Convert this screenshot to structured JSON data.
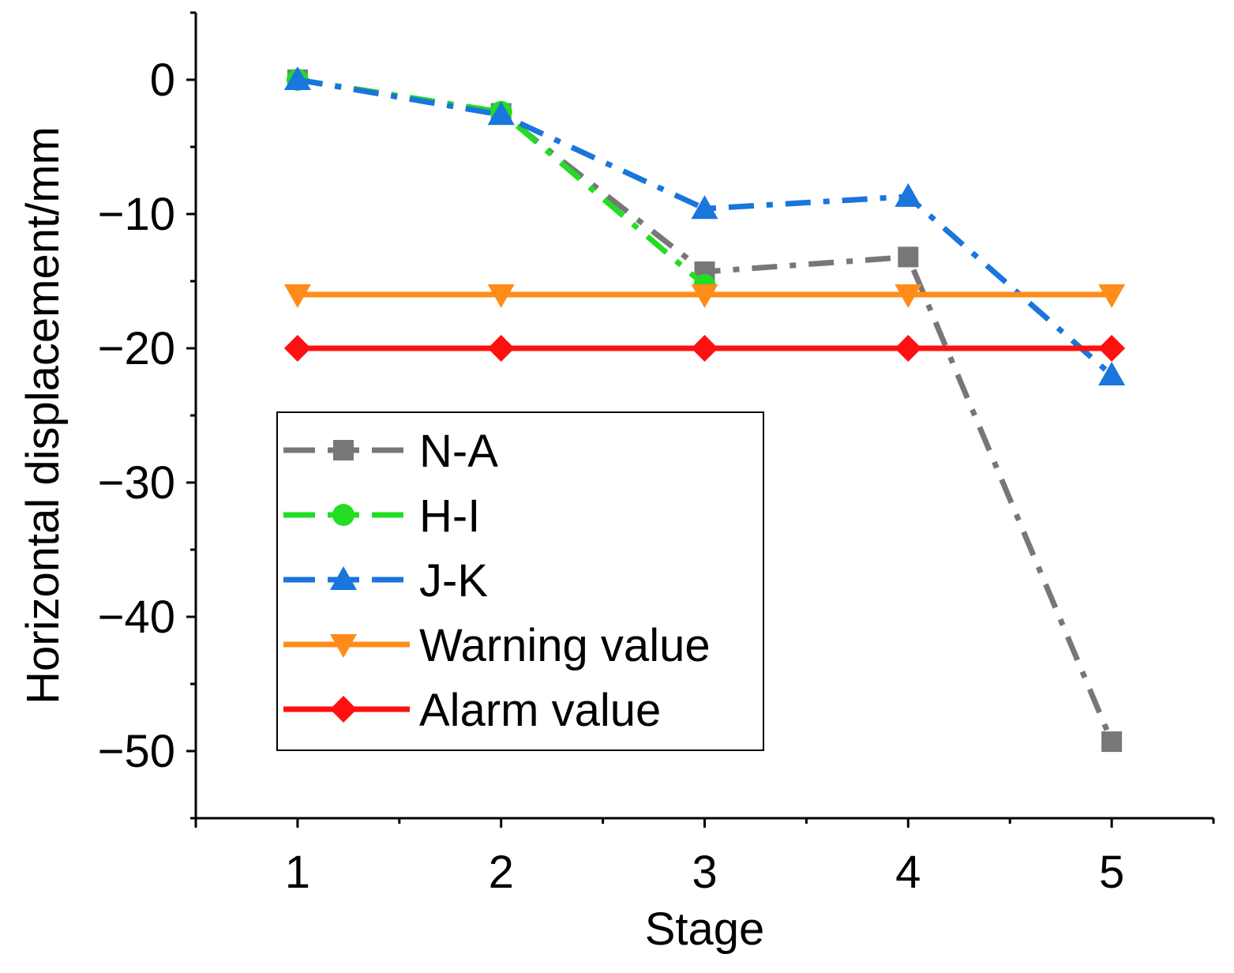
{
  "chart_data": {
    "type": "line",
    "title": "",
    "xlabel": "Stage",
    "ylabel": "Horizontal displacement/mm",
    "x": [
      1,
      2,
      3,
      4,
      5
    ],
    "xlim": [
      0.5,
      5.5
    ],
    "ylim": [
      -55,
      5
    ],
    "x_tick_labels": [
      "1",
      "2",
      "3",
      "4",
      "5"
    ],
    "y_ticks": [
      0,
      -10,
      -20,
      -30,
      -40,
      -50
    ],
    "y_tick_labels": [
      "0",
      "−10",
      "−20",
      "−30",
      "−40",
      "−50"
    ],
    "grid": false,
    "legend_position": "lower-left",
    "series": [
      {
        "name": "N-A",
        "values": [
          0,
          -2.5,
          -14.3,
          -13.2,
          -49.3
        ],
        "color": "#777777",
        "marker": "square",
        "line_style": "dash-dot"
      },
      {
        "name": "H-I",
        "values": [
          0,
          -2.4,
          -15.3,
          null,
          null
        ],
        "color": "#22dd22",
        "marker": "circle",
        "line_style": "dash-dot"
      },
      {
        "name": "J-K",
        "values": [
          0,
          -2.6,
          -9.6,
          -8.7,
          -22
        ],
        "color": "#1a75dd",
        "marker": "triangle-up",
        "line_style": "dash-dot"
      },
      {
        "name": "Warning value",
        "values": [
          -16,
          -16,
          -16,
          -16,
          -16
        ],
        "color": "#ff8c1a",
        "marker": "triangle-down",
        "line_style": "solid"
      },
      {
        "name": "Alarm value",
        "values": [
          -20,
          -20,
          -20,
          -20,
          -20
        ],
        "color": "#ff1010",
        "marker": "diamond",
        "line_style": "solid"
      }
    ]
  }
}
